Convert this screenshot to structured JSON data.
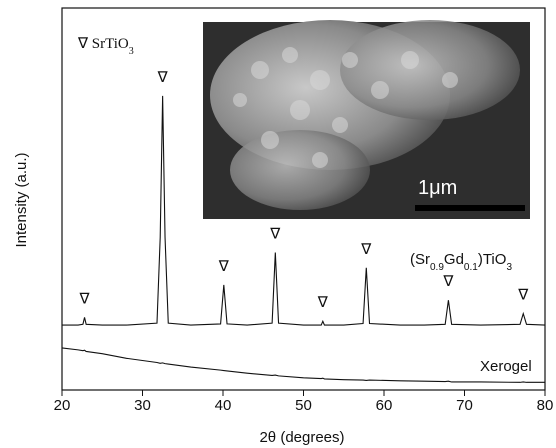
{
  "chart_data": {
    "type": "line",
    "xlabel": "2θ (degrees)",
    "ylabel": "Intensity (a.u.)",
    "xlim": [
      20,
      80
    ],
    "xticks": [
      20,
      30,
      40,
      50,
      60,
      70,
      80
    ],
    "ylim": [
      0,
      100
    ],
    "x": [
      20,
      22,
      22.6,
      22.8,
      23,
      25,
      28,
      31.8,
      32.2,
      32.5,
      32.8,
      33.2,
      36,
      39.7,
      40.1,
      40.5,
      43,
      46.1,
      46.5,
      46.9,
      50,
      52.2,
      52.4,
      52.6,
      55,
      57.4,
      57.8,
      58.2,
      62,
      65,
      67.6,
      68,
      68.4,
      72,
      76.9,
      77.3,
      77.7,
      80
    ],
    "series": [
      {
        "name": [
          {
            "text": "(Sr"
          },
          {
            "text": "0.9",
            "sub": true
          },
          {
            "text": "Gd"
          },
          {
            "text": "0.1",
            "sub": true
          },
          {
            "text": ")TiO"
          },
          {
            "text": "3",
            "sub": true
          }
        ],
        "color": "#111111",
        "values": [
          17,
          17,
          17.2,
          19,
          17.2,
          17,
          17,
          17.5,
          40,
          77,
          40,
          17.5,
          17,
          17.3,
          27.5,
          17.3,
          17,
          17.5,
          36,
          17.5,
          17,
          17,
          18,
          17,
          17,
          17.4,
          32,
          17.4,
          17,
          17,
          17.2,
          23.5,
          17.2,
          17,
          17.2,
          20,
          17.2,
          17
        ]
      },
      {
        "name": "Xerogel",
        "color": "#111111",
        "values": [
          11,
          10.5,
          10.3,
          10.4,
          10.1,
          9.5,
          8.3,
          7.2,
          7,
          7.1,
          6.9,
          6.8,
          6,
          5.2,
          5.1,
          5,
          4.4,
          3.8,
          3.9,
          3.7,
          3.2,
          3,
          3.1,
          2.9,
          2.7,
          2.6,
          2.5,
          2.6,
          2.4,
          2.3,
          2.2,
          2.3,
          2.1,
          2.1,
          2,
          2.1,
          2,
          2
        ]
      }
    ],
    "peak_markers": {
      "symbol": "∇",
      "x": [
        22.8,
        32.5,
        40.1,
        46.5,
        52.4,
        57.8,
        68,
        77.3
      ]
    },
    "legend": [
      {
        "text": "∇ SrTiO"
      },
      {
        "text": "3",
        "sub": true
      }
    ],
    "inset": {
      "scale_bar": "1μm"
    }
  }
}
